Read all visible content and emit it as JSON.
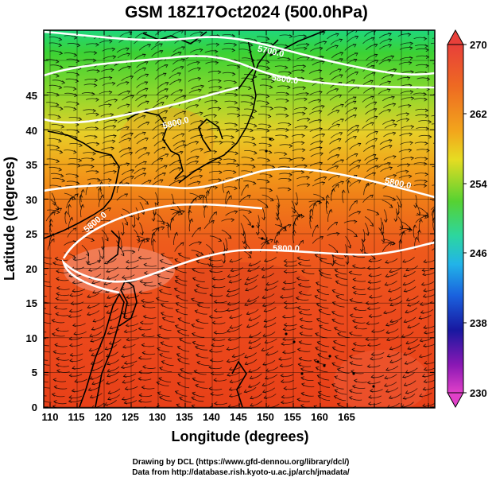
{
  "title": "GSM 18Z17Oct2024 (500.0hPa)",
  "x_axis": {
    "label": "Longitude (degrees)",
    "ticks": [
      "110",
      "115",
      "120",
      "125",
      "130",
      "135",
      "140",
      "145",
      "150",
      "155",
      "160",
      "165"
    ]
  },
  "y_axis": {
    "label": "Latitude (degrees)",
    "ticks": [
      "0",
      "5",
      "10",
      "15",
      "20",
      "25",
      "30",
      "35",
      "40",
      "45"
    ]
  },
  "colorbar": {
    "labels": [
      "270",
      "262",
      "254",
      "246",
      "238",
      "230"
    ],
    "colors": [
      "#e8403a",
      "#f08a10",
      "#f2d21a",
      "#3ccf3c",
      "#2ad0c8",
      "#1a86e8",
      "#1818a8",
      "#9418b0",
      "#e040c8"
    ]
  },
  "contour_labels": [
    "5700.0",
    "5800.0",
    "5800.0",
    "5800.0",
    "5800.0",
    "5800.0"
  ],
  "footer": {
    "line1": "Drawing by DCL (https://www.gfd-dennou.org/library/dcl/)",
    "line2": "Data from http://database.rish.kyoto-u.ac.jp/arch/jmadata/"
  }
}
